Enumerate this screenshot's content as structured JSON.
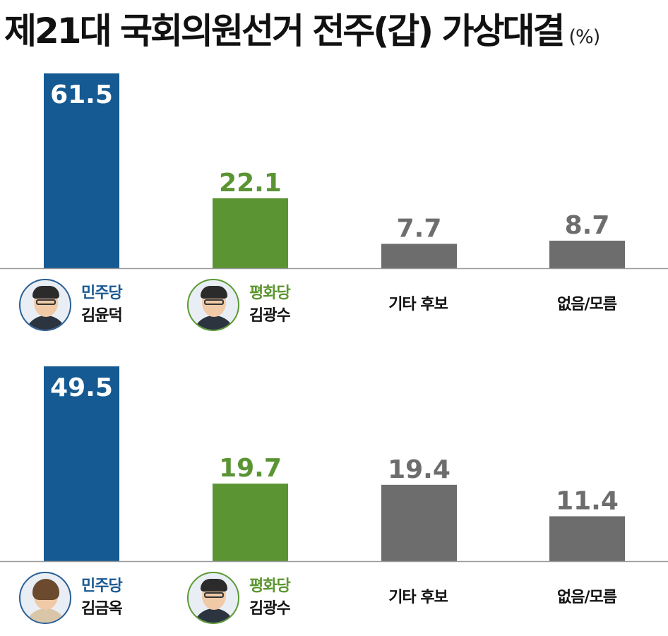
{
  "title": "제21대 국회의원선거 전주(갑) 가상대결",
  "unit": "(%)",
  "colors": {
    "minju": "#155a92",
    "pyeonghwa": "#5a9433",
    "other": "#6d6d6d",
    "axis": "#999999"
  },
  "chart_data": [
    {
      "type": "bar",
      "categories": [
        "민주당 김윤덕",
        "평화당 김광수",
        "기타 후보",
        "없음/모름"
      ],
      "values": [
        61.5,
        22.1,
        7.7,
        8.7
      ],
      "parties": [
        "민주당",
        "평화당",
        "",
        ""
      ],
      "candidates": [
        "김윤덕",
        "김광수",
        "",
        ""
      ],
      "labels": [
        "",
        "",
        "기타 후보",
        "없음/모름"
      ],
      "ylim": [
        0,
        61.5
      ]
    },
    {
      "type": "bar",
      "categories": [
        "민주당 김금옥",
        "평화당 김광수",
        "기타 후보",
        "없음/모름"
      ],
      "values": [
        49.5,
        19.7,
        19.4,
        11.4
      ],
      "parties": [
        "민주당",
        "평화당",
        "",
        ""
      ],
      "candidates": [
        "김금옥",
        "김광수",
        "",
        ""
      ],
      "labels": [
        "",
        "",
        "기타 후보",
        "없음/모름"
      ],
      "ylim": [
        0,
        49.5
      ]
    }
  ]
}
